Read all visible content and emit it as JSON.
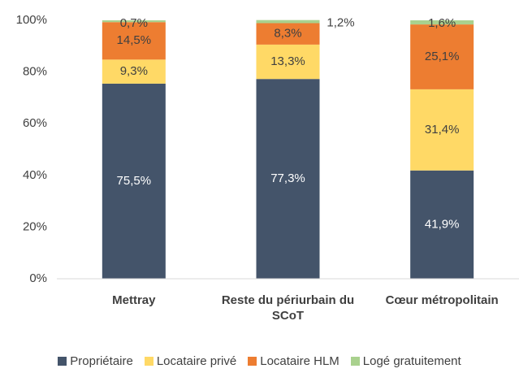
{
  "chart_data": {
    "type": "stacked_bar",
    "categories": [
      "Mettray",
      "Reste du périurbain du SCoT",
      "Cœur métropolitain"
    ],
    "series": [
      {
        "name": "Propriétaire",
        "color": "#44546a",
        "values": [
          75.5,
          77.3,
          41.9
        ],
        "value_labels": [
          "75,5%",
          "77,3%",
          "41,9%"
        ]
      },
      {
        "name": "Locataire privé",
        "color": "#ffd966",
        "values": [
          9.3,
          13.3,
          31.4
        ],
        "value_labels": [
          "9,3%",
          "13,3%",
          "31,4%"
        ]
      },
      {
        "name": "Locataire HLM",
        "color": "#ed7d31",
        "values": [
          14.5,
          8.3,
          25.1
        ],
        "value_labels": [
          "14,5%",
          "8,3%",
          "25,1%"
        ]
      },
      {
        "name": "Logé gratuitement",
        "color": "#a9d18e",
        "values": [
          0.7,
          1.2,
          1.6
        ],
        "value_labels": [
          "0,7%",
          "1,2%",
          "1,6%"
        ]
      }
    ],
    "ylim": [
      0,
      100
    ],
    "yticks": [
      {
        "value": 0,
        "label": "0%"
      },
      {
        "value": 20,
        "label": "20%"
      },
      {
        "value": 40,
        "label": "40%"
      },
      {
        "value": 60,
        "label": "60%"
      },
      {
        "value": 80,
        "label": "80%"
      },
      {
        "value": 100,
        "label": "100%"
      }
    ]
  }
}
